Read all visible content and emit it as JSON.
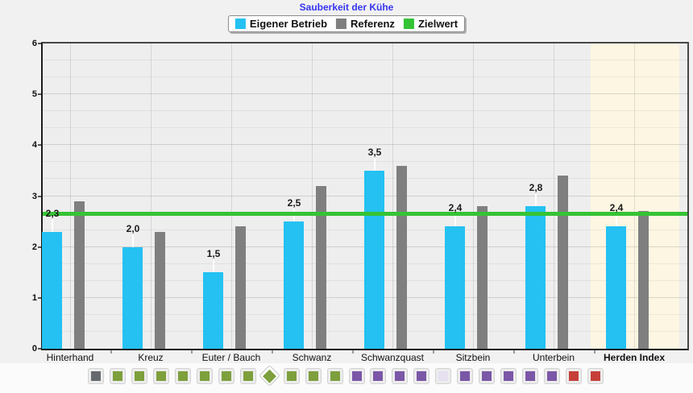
{
  "page": {
    "background": "#f1f1f1"
  },
  "chart_data": {
    "type": "bar",
    "title": "Sauberkeit der Kühe",
    "title_color": "#3535f0",
    "categories": [
      "Hinterhand",
      "Kreuz",
      "Euter / Bauch",
      "Schwanz",
      "Schwanzquast",
      "Sitzbein",
      "Unterbein",
      "Herden Index"
    ],
    "highlighted_category": "Herden Index",
    "ylim": [
      0,
      6
    ],
    "y_tick_labels": [
      "0",
      "1",
      "2",
      "3",
      "4",
      "5",
      "6"
    ],
    "grid": {
      "minor_step": 0.3333,
      "major_step": 1
    },
    "legend_position": "top-center",
    "series": [
      {
        "name": "Eigener Betrieb",
        "type": "bar",
        "color": "#24c1f2",
        "values": [
          2.3,
          2.0,
          1.5,
          2.5,
          3.5,
          2.4,
          2.8,
          2.4
        ],
        "value_labels": [
          "2,3",
          "2,0",
          "1,5",
          "2,5",
          "3,5",
          "2,4",
          "2,8",
          "2,4"
        ]
      },
      {
        "name": "Referenz",
        "type": "bar",
        "color": "#7f7f7f",
        "values": [
          2.9,
          2.3,
          2.4,
          3.2,
          3.6,
          2.8,
          3.4,
          2.7
        ]
      },
      {
        "name": "Zielwert",
        "type": "line",
        "color": "#35c335",
        "value": 2.65
      }
    ],
    "plot_colors": {
      "background": "#eeeeee",
      "highlight_band": "#fcf6e2"
    }
  },
  "icon_strip": {
    "palette": {
      "gray": "#66696c",
      "green": "#7d9f3c",
      "purple": "#7b57a7",
      "pale": "#e6e0f0",
      "red": "#c63f39"
    },
    "selected_shape": "diamond",
    "items": [
      "gray",
      "green",
      "green",
      "green",
      "green",
      "green",
      "green",
      "green",
      "green-diamond",
      "green",
      "green",
      "green",
      "purple",
      "purple",
      "purple",
      "purple",
      "pale",
      "purple",
      "purple",
      "purple",
      "purple",
      "purple",
      "red",
      "red"
    ]
  }
}
